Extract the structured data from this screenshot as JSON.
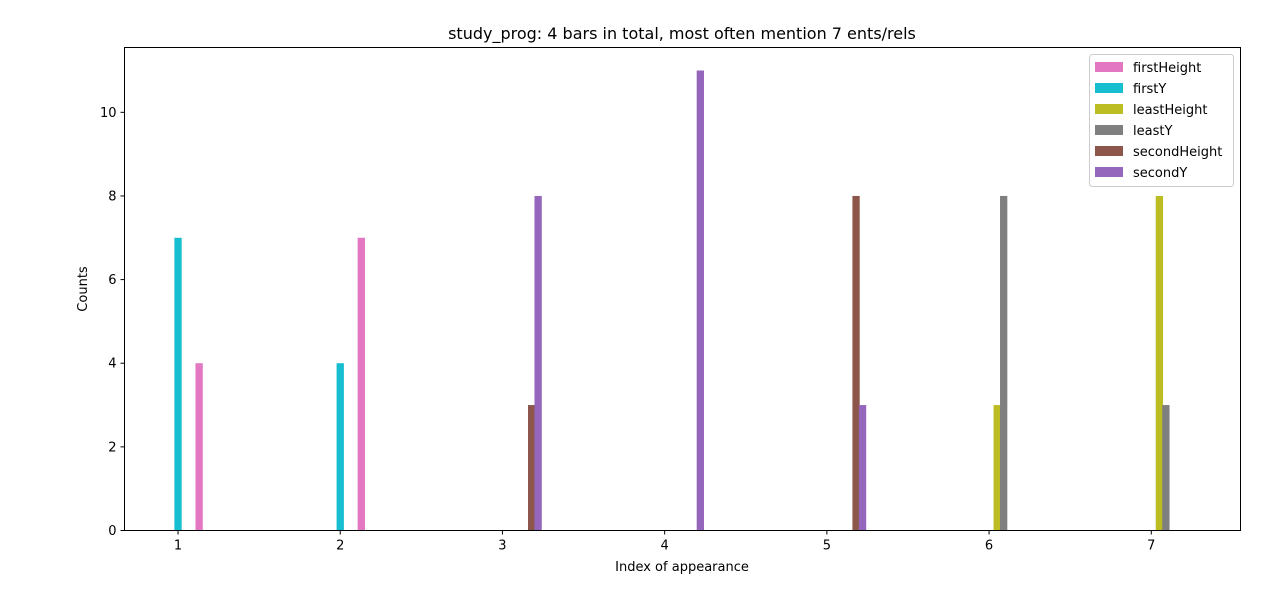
{
  "chart_data": {
    "type": "bar",
    "title": "study_prog: 4 bars in total, most often mention  7 ents/rels",
    "xlabel": "Index of appearance",
    "ylabel": "Counts",
    "categories": [
      "1",
      "2",
      "3",
      "4",
      "5",
      "6",
      "7"
    ],
    "x_ticks": [
      "1",
      "2",
      "3",
      "4",
      "5",
      "6",
      "7"
    ],
    "y_ticks": [
      "0",
      "2",
      "4",
      "6",
      "8",
      "10"
    ],
    "ylim": [
      0,
      11.55
    ],
    "xlim": [
      0.67,
      7.55
    ],
    "grid": false,
    "legend_position": "top-right",
    "series": [
      {
        "name": "firstHeight",
        "color": "#e377c2",
        "values": [
          4,
          7,
          0,
          0,
          0,
          0,
          0
        ]
      },
      {
        "name": "firstY",
        "color": "#17becf",
        "values": [
          7,
          4,
          0,
          0,
          0,
          0,
          0
        ]
      },
      {
        "name": "leastHeight",
        "color": "#bcbd22",
        "values": [
          0,
          0,
          0,
          0,
          0,
          3,
          8
        ]
      },
      {
        "name": "leastY",
        "color": "#7f7f7f",
        "values": [
          0,
          0,
          0,
          0,
          0,
          8,
          3
        ]
      },
      {
        "name": "secondHeight",
        "color": "#8c564b",
        "values": [
          0,
          0,
          3,
          0,
          8,
          0,
          0
        ]
      },
      {
        "name": "secondY",
        "color": "#9467bd",
        "values": [
          0,
          0,
          8,
          11,
          3,
          0,
          0
        ]
      }
    ]
  }
}
